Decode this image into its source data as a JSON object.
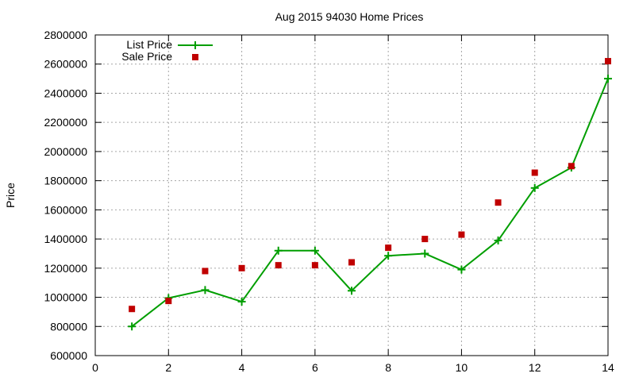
{
  "chart_data": {
    "type": "line",
    "title": "Aug 2015 94030 Home Prices",
    "xlabel": "",
    "ylabel": "Price",
    "xlim": [
      0,
      14
    ],
    "ylim": [
      600000,
      2800000
    ],
    "grid": true,
    "legend_position": "top-left",
    "x_ticks": [
      "0",
      "2",
      "4",
      "6",
      "8",
      "10",
      "12",
      "14"
    ],
    "y_ticks": [
      "600000",
      "800000",
      "1000000",
      "1200000",
      "1400000",
      "1600000",
      "1800000",
      "2000000",
      "2200000",
      "2400000",
      "2600000",
      "2800000"
    ],
    "series": [
      {
        "name": "List Price",
        "style": "line-with-plus-markers",
        "color": "#009e00",
        "x": [
          1,
          2,
          3,
          4,
          5,
          6,
          7,
          8,
          9,
          10,
          11,
          12,
          13,
          14
        ],
        "values": [
          800000,
          995000,
          1050000,
          970000,
          1320000,
          1320000,
          1045000,
          1285000,
          1300000,
          1190000,
          1390000,
          1750000,
          1890000,
          2500000
        ]
      },
      {
        "name": "Sale Price",
        "style": "square-markers",
        "color": "#c00000",
        "x": [
          1,
          2,
          3,
          4,
          5,
          6,
          7,
          8,
          9,
          10,
          11,
          12,
          13,
          14
        ],
        "values": [
          920000,
          975000,
          1180000,
          1200000,
          1220000,
          1220000,
          1240000,
          1340000,
          1400000,
          1430000,
          1650000,
          1855000,
          1900000,
          2620000
        ]
      }
    ]
  }
}
